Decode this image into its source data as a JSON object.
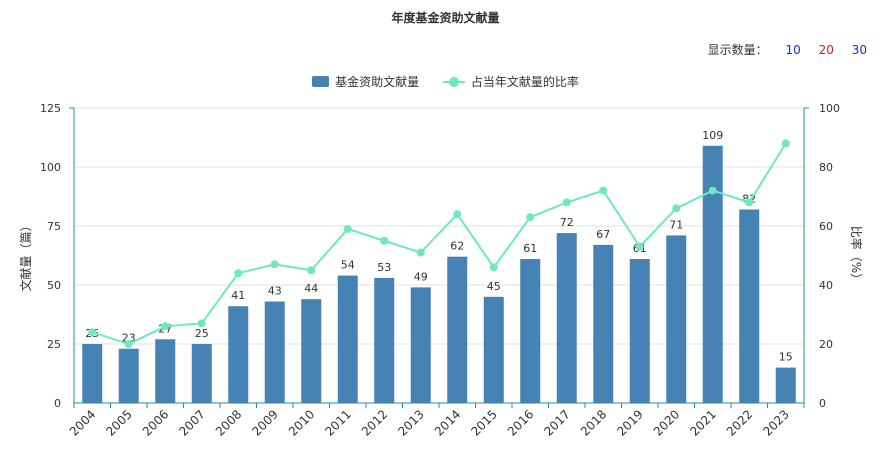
{
  "title": "年度基金资助文献量",
  "display_count": {
    "label": "显示数量：",
    "options": [
      {
        "label": "10",
        "color": "#1a2fd0"
      },
      {
        "label": "20",
        "color": "#d0201a"
      },
      {
        "label": "30",
        "color": "#1a2fd0"
      }
    ]
  },
  "legend": {
    "bar_label": "基金资助文献量",
    "line_label": "占当年文献量的比率"
  },
  "colors": {
    "bar": "#4682b4",
    "line": "#6fe8c1",
    "axis": "#1f8fa0",
    "grid": "#e2e2e2"
  },
  "chart_data": {
    "type": "bar+line",
    "categories": [
      "2004",
      "2005",
      "2006",
      "2007",
      "2008",
      "2009",
      "2010",
      "2011",
      "2012",
      "2013",
      "2014",
      "2015",
      "2016",
      "2017",
      "2018",
      "2019",
      "2020",
      "2021",
      "2022",
      "2023"
    ],
    "series": [
      {
        "name": "基金资助文献量",
        "type": "bar",
        "axis": "left",
        "values": [
          25,
          23,
          27,
          25,
          41,
          43,
          44,
          54,
          53,
          49,
          62,
          45,
          61,
          72,
          67,
          61,
          71,
          109,
          82,
          15
        ]
      },
      {
        "name": "占当年文献量的比率",
        "type": "line",
        "axis": "right",
        "values": [
          24,
          20,
          26,
          27,
          44,
          47,
          45,
          59,
          55,
          51,
          64,
          46,
          63,
          68,
          72,
          53,
          66,
          72,
          68,
          88
        ]
      }
    ],
    "ylabel_left": "文献量（篇）",
    "ylabel_right": "比率（%）",
    "ylim_left": [
      0,
      125
    ],
    "ylim_right": [
      0,
      100
    ],
    "yticks_left": [
      "0",
      "25",
      "50",
      "75",
      "100",
      "125"
    ],
    "yticks_right": [
      "0",
      "20",
      "40",
      "60",
      "80",
      "100"
    ],
    "grid": true,
    "legend_position": "top-center"
  }
}
